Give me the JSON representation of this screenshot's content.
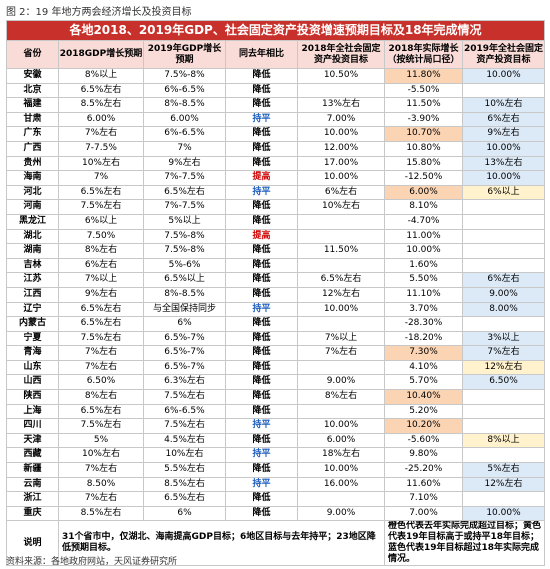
{
  "caption": "图 2：19 年地方两会经济增长及投资目标",
  "title": "各地2018、2019年GDP、社会固定资产投资增速预期目标及18年完成情况",
  "table": {
    "header": [
      "省份",
      "2018GDP增长预期",
      "2019年GDP增长预期",
      "同去年相比",
      "2018年全社会固定资产投资目标",
      "2018年实际增长（按统计局口径）",
      "2019年全社会固定资产投资目标"
    ],
    "rows": [
      {
        "cells": [
          "安徽",
          "8%以上",
          "7.5%-8%",
          "降低",
          "10.50%",
          "11.80%",
          "10.00%"
        ],
        "fills": {
          "5": "#fbd4b4",
          "6": "#dce9f7"
        }
      },
      {
        "cells": [
          "北京",
          "6.5%左右",
          "6%-6.5%",
          "降低",
          null,
          "-5.50%",
          null
        ]
      },
      {
        "cells": [
          "福建",
          "8.5%左右",
          "8%-8.5%",
          "降低",
          "13%左右",
          "11.50%",
          "10%左右"
        ],
        "fills": {
          "6": "#dce9f7"
        }
      },
      {
        "cells": [
          "甘肃",
          "6.00%",
          "6.00%",
          "持平",
          "7.00%",
          "-3.90%",
          "6%左右"
        ],
        "fills": {
          "6": "#dce9f7"
        },
        "colors": {
          "3": "#1f5fbf"
        }
      },
      {
        "cells": [
          "广东",
          "7%左右",
          "6%-6.5%",
          "降低",
          "10.00%",
          "10.70%",
          "9%左右"
        ],
        "fills": {
          "5": "#fbd4b4",
          "6": "#dce9f7"
        }
      },
      {
        "cells": [
          "广西",
          "7-7.5%",
          "7%",
          "降低",
          "12.00%",
          "10.80%",
          "10.00%"
        ],
        "fills": {
          "6": "#dce9f7"
        }
      },
      {
        "cells": [
          "贵州",
          "10%左右",
          "9%左右",
          "降低",
          "17.00%",
          "15.80%",
          "13%左右"
        ],
        "fills": {
          "6": "#dce9f7"
        }
      },
      {
        "cells": [
          "海南",
          "7%",
          "7%-7.5%",
          "提高",
          "10.00%",
          "-12.50%",
          "10.00%"
        ],
        "fills": {
          "6": "#dce9f7"
        },
        "colors": {
          "3": "#d00000"
        }
      },
      {
        "cells": [
          "河北",
          "6.5%左右",
          "6.5%左右",
          "持平",
          "6%左右",
          "6.00%",
          "6%以上"
        ],
        "fills": {
          "5": "#fbd4b4",
          "6": "#fff2cc"
        },
        "colors": {
          "3": "#1f5fbf"
        }
      },
      {
        "cells": [
          "河南",
          "7.5%左右",
          "7%-7.5%",
          "降低",
          "10%左右",
          "8.10%",
          null
        ]
      },
      {
        "cells": [
          "黑龙江",
          "6%以上",
          "5%以上",
          "降低",
          null,
          "-4.70%",
          null
        ]
      },
      {
        "cells": [
          "湖北",
          "7.50%",
          "7.5%-8%",
          "提高",
          null,
          "11.00%",
          null
        ],
        "colors": {
          "3": "#d00000"
        }
      },
      {
        "cells": [
          "湖南",
          "8%左右",
          "7.5%-8%",
          "降低",
          "11.50%",
          "10.00%",
          null
        ]
      },
      {
        "cells": [
          "吉林",
          "6%左右",
          "5%-6%",
          "降低",
          null,
          "1.60%",
          null
        ]
      },
      {
        "cells": [
          "江苏",
          "7%以上",
          "6.5%以上",
          "降低",
          "6.5%左右",
          "5.50%",
          "6%左右"
        ],
        "fills": {
          "6": "#dce9f7"
        }
      },
      {
        "cells": [
          "江西",
          "9%左右",
          "8%-8.5%",
          "降低",
          "12%左右",
          "11.10%",
          "9.00%"
        ],
        "fills": {
          "6": "#dce9f7"
        }
      },
      {
        "cells": [
          "辽宁",
          "6.5%左右",
          "与全国保持同步",
          "持平",
          "10.00%",
          "3.70%",
          "8.00%"
        ],
        "fills": {
          "6": "#dce9f7"
        },
        "colors": {
          "3": "#1f5fbf"
        }
      },
      {
        "cells": [
          "内蒙古",
          "6.5%左右",
          "6%",
          "降低",
          null,
          "-28.30%",
          null
        ]
      },
      {
        "cells": [
          "宁夏",
          "7.5%左右",
          "6.5%-7%",
          "降低",
          "7%以上",
          "-18.20%",
          "3%以上"
        ],
        "fills": {
          "6": "#dce9f7"
        }
      },
      {
        "cells": [
          "青海",
          "7%左右",
          "6.5%-7%",
          "降低",
          "7%左右",
          "7.30%",
          "7%左右"
        ],
        "fills": {
          "5": "#fbd4b4",
          "6": "#dce9f7"
        }
      },
      {
        "cells": [
          "山东",
          "7%左右",
          "6.5%-7%",
          "降低",
          null,
          "4.10%",
          "12%左右"
        ],
        "fills": {
          "6": "#fff2cc"
        }
      },
      {
        "cells": [
          "山西",
          "6.50%",
          "6.3%左右",
          "降低",
          "9.00%",
          "5.70%",
          "6.50%"
        ],
        "fills": {
          "6": "#dce9f7"
        }
      },
      {
        "cells": [
          "陕西",
          "8%左右",
          "7.5%左右",
          "降低",
          "8%左右",
          "10.40%",
          null
        ],
        "fills": {
          "5": "#fbd4b4"
        }
      },
      {
        "cells": [
          "上海",
          "6.5%左右",
          "6%-6.5%",
          "降低",
          null,
          "5.20%",
          null
        ]
      },
      {
        "cells": [
          "四川",
          "7.5%左右",
          "7.5%左右",
          "持平",
          "10.00%",
          "10.20%",
          null
        ],
        "fills": {
          "5": "#fbd4b4"
        },
        "colors": {
          "3": "#1f5fbf"
        }
      },
      {
        "cells": [
          "天津",
          "5%",
          "4.5%左右",
          "降低",
          "6.00%",
          "-5.60%",
          "8%以上"
        ],
        "fills": {
          "6": "#fff2cc"
        }
      },
      {
        "cells": [
          "西藏",
          "10%左右",
          "10%左右",
          "持平",
          "18%左右",
          "9.80%",
          null
        ],
        "colors": {
          "3": "#1f5fbf"
        }
      },
      {
        "cells": [
          "新疆",
          "7%左右",
          "5.5%左右",
          "降低",
          "10.00%",
          "-25.20%",
          "5%左右"
        ],
        "fills": {
          "6": "#dce9f7"
        }
      },
      {
        "cells": [
          "云南",
          "8.50%",
          "8.5%左右",
          "持平",
          "16.00%",
          "11.60%",
          "12%左右"
        ],
        "fills": {
          "6": "#dce9f7"
        },
        "colors": {
          "3": "#1f5fbf"
        }
      },
      {
        "cells": [
          "浙江",
          "7%左右",
          "6.5%左右",
          "降低",
          null,
          "7.10%",
          null
        ]
      },
      {
        "cells": [
          "重庆",
          "8.5%左右",
          "6%",
          "降低",
          "9.00%",
          "7.00%",
          "10.00%"
        ],
        "fills": {
          "6": "#dce9f7"
        }
      }
    ],
    "notes": {
      "label": "说明",
      "left": "31个省市中，仅湖北、海南提高GDP目标；6地区目标与去年持平；23地区降低预期目标。",
      "right": "橙色代表去年实际完成超过目标；黄色代表19年目标高于或持平18年目标；蓝色代表19年目标超过18年实际完成情况。"
    }
  },
  "source": "资料来源：各地政府网站，天风证券研究所"
}
